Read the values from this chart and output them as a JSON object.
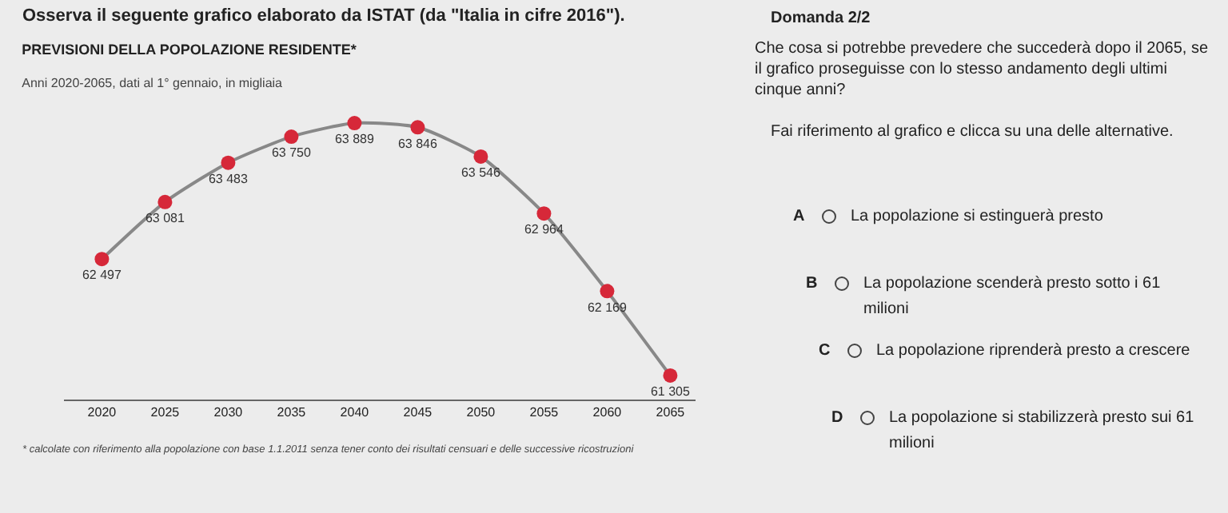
{
  "chart_data": {
    "type": "line",
    "title": "PREVISIONI DELLA POPOLAZIONE RESIDENTE*",
    "subtitle": "Anni 2020-2065, dati al 1° gennaio, in migliaia",
    "categories": [
      "2020",
      "2025",
      "2030",
      "2035",
      "2040",
      "2045",
      "2050",
      "2055",
      "2060",
      "2065"
    ],
    "series": [
      {
        "color": "#888888",
        "colors": [
          "#d62839",
          "#d62839",
          "#d62839",
          "#d62839",
          "#d62839",
          "#d62839",
          "#d62839",
          "#d62839",
          "#d62839",
          "#d62839"
        ],
        "values": [
          62497,
          63081,
          63483,
          63750,
          63889,
          63846,
          63546,
          62964,
          62169,
          61305
        ],
        "value_labels": [
          "62 497",
          "63 081",
          "63 483",
          "63 750",
          "63 889",
          "63 846",
          "63 546",
          "62 964",
          "62 169",
          "61 305"
        ]
      }
    ],
    "marker": "circle",
    "line_style": "solid",
    "tick_labels": "x",
    "annotations": [
      "Osserva il seguente grafico elaborato da ISTAT (da \"Italia in cifre 2016\").",
      "* calcolate con riferimento alla popolazione con base 1.1.2011 senza tener conto dei risultati censuari e delle successive ricostruzioni",
      "Domanda 2/2",
      "Che cosa si potrebbe prevedere che succederà dopo il 2065, se il grafico proseguisse con lo stesso andamento degli ultimi cinque anni?",
      "Fai riferimento al grafico e clicca su una delle alternative.",
      "A",
      "La popolazione si estinguerà presto",
      "B",
      "La popolazione scenderà presto sotto i 61 milioni",
      "C",
      "La popolazione riprenderà presto a crescere",
      "D",
      "La popolazione si stabilizzerà presto sui 61 milioni"
    ]
  }
}
